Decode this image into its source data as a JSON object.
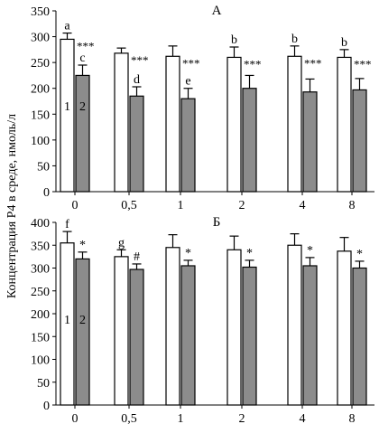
{
  "ylabel": "Концентрация Р4 в среде, нмоль/л",
  "colors": {
    "series1": "#ffffff",
    "series2": "#8c8c8c",
    "stroke": "#000000"
  },
  "chart_data": [
    {
      "type": "bar",
      "panel_label": "А",
      "categories": [
        "0",
        "0,5",
        "1",
        "2",
        "4",
        "8"
      ],
      "ylim": [
        0,
        350
      ],
      "yticks": [
        0,
        50,
        100,
        150,
        200,
        250,
        300,
        350
      ],
      "grid": false,
      "series": [
        {
          "name": "1",
          "values": [
            295,
            268,
            262,
            260,
            262,
            260
          ],
          "errors": [
            12,
            10,
            20,
            20,
            20,
            15
          ]
        },
        {
          "name": "2",
          "values": [
            225,
            185,
            180,
            200,
            193,
            197
          ],
          "errors": [
            20,
            18,
            20,
            25,
            25,
            22
          ]
        }
      ],
      "annotations": [
        {
          "series": 0,
          "index": 0,
          "text": "a"
        },
        {
          "series": 1,
          "index": 0,
          "text": "c"
        },
        {
          "series": 1,
          "index": 1,
          "text": "d"
        },
        {
          "series": 1,
          "index": 2,
          "text": "e"
        },
        {
          "series": 0,
          "index": 3,
          "text": "b"
        },
        {
          "series": 0,
          "index": 4,
          "text": "b"
        },
        {
          "series": 0,
          "index": 5,
          "text": "b"
        },
        {
          "series": 0,
          "index": 0,
          "text": "***",
          "side": "right"
        },
        {
          "series": 0,
          "index": 1,
          "text": "***",
          "side": "right"
        },
        {
          "series": 0,
          "index": 2,
          "text": "***",
          "side": "right"
        },
        {
          "series": 0,
          "index": 3,
          "text": "***",
          "side": "right"
        },
        {
          "series": 0,
          "index": 4,
          "text": "***",
          "side": "right"
        },
        {
          "series": 0,
          "index": 5,
          "text": "***",
          "side": "right"
        }
      ]
    },
    {
      "type": "bar",
      "panel_label": "Б",
      "categories": [
        "0",
        "0,5",
        "1",
        "2",
        "4",
        "8"
      ],
      "ylim": [
        0,
        400
      ],
      "yticks": [
        0,
        50,
        100,
        150,
        200,
        250,
        300,
        350,
        400
      ],
      "grid": false,
      "series": [
        {
          "name": "1",
          "values": [
            355,
            325,
            345,
            340,
            350,
            337
          ],
          "errors": [
            25,
            15,
            28,
            30,
            25,
            30
          ]
        },
        {
          "name": "2",
          "values": [
            320,
            297,
            305,
            302,
            305,
            300
          ],
          "errors": [
            15,
            12,
            12,
            15,
            18,
            15
          ]
        }
      ],
      "annotations": [
        {
          "series": 0,
          "index": 0,
          "text": "f"
        },
        {
          "series": 0,
          "index": 1,
          "text": "g"
        },
        {
          "series": 1,
          "index": 0,
          "text": "*"
        },
        {
          "series": 1,
          "index": 1,
          "text": "#"
        },
        {
          "series": 1,
          "index": 2,
          "text": "*"
        },
        {
          "series": 1,
          "index": 3,
          "text": "*"
        },
        {
          "series": 1,
          "index": 4,
          "text": "*"
        },
        {
          "series": 1,
          "index": 5,
          "text": "*"
        }
      ]
    }
  ]
}
